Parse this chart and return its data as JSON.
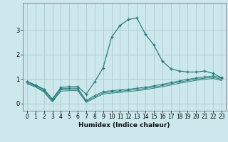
{
  "xlabel": "Humidex (Indice chaleur)",
  "background_color": "#cce8ec",
  "line_color": "#2e7d7d",
  "x_values": [
    0,
    1,
    2,
    3,
    4,
    5,
    6,
    7,
    8,
    9,
    10,
    11,
    12,
    13,
    14,
    15,
    16,
    17,
    18,
    19,
    20,
    21,
    22,
    23
  ],
  "series1": [
    0.9,
    0.75,
    0.58,
    0.18,
    0.65,
    0.68,
    0.68,
    0.38,
    0.88,
    1.45,
    2.7,
    3.18,
    3.42,
    3.48,
    2.82,
    2.38,
    1.72,
    1.42,
    1.32,
    1.28,
    1.28,
    1.32,
    1.22,
    1.05
  ],
  "series2": [
    0.88,
    0.73,
    0.55,
    0.15,
    0.6,
    0.62,
    0.62,
    0.12,
    0.32,
    0.48,
    0.52,
    0.55,
    0.58,
    0.62,
    0.66,
    0.72,
    0.78,
    0.85,
    0.92,
    0.98,
    1.04,
    1.08,
    1.12,
    1.03
  ],
  "series3": [
    0.84,
    0.7,
    0.5,
    0.1,
    0.55,
    0.57,
    0.57,
    0.08,
    0.27,
    0.43,
    0.47,
    0.5,
    0.53,
    0.57,
    0.61,
    0.67,
    0.73,
    0.8,
    0.87,
    0.93,
    0.99,
    1.03,
    1.07,
    0.98
  ],
  "series4": [
    0.8,
    0.67,
    0.46,
    0.06,
    0.5,
    0.52,
    0.52,
    0.04,
    0.22,
    0.38,
    0.42,
    0.45,
    0.48,
    0.52,
    0.56,
    0.62,
    0.68,
    0.75,
    0.82,
    0.88,
    0.94,
    0.98,
    1.02,
    0.93
  ],
  "ylim": [
    -0.3,
    4.1
  ],
  "xlim": [
    -0.5,
    23.5
  ],
  "yticks": [
    0,
    1,
    2,
    3
  ],
  "xticks": [
    0,
    1,
    2,
    3,
    4,
    5,
    6,
    7,
    8,
    9,
    10,
    11,
    12,
    13,
    14,
    15,
    16,
    17,
    18,
    19,
    20,
    21,
    22,
    23
  ],
  "grid_color": "#aacccc",
  "marker": "+"
}
